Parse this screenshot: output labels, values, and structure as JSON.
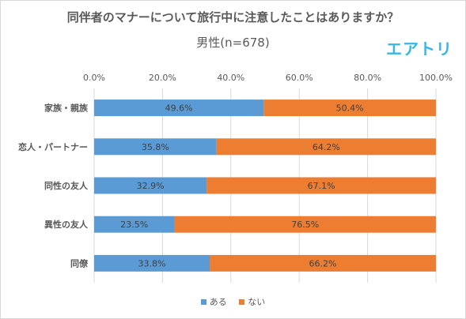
{
  "chart_data": {
    "type": "bar",
    "stacked": true,
    "orientation": "horizontal",
    "percent": true,
    "title": "同伴者のマナーについて旅行中に注意したことはありますか？",
    "subtitle": "男性(n=678)",
    "brand": "エアトリ",
    "categories": [
      "家族・親族",
      "恋人・パートナー",
      "同性の友人",
      "異性の友人",
      "同僚"
    ],
    "series": [
      {
        "name": "ある",
        "color": "#5b9bd5",
        "values": [
          49.6,
          35.8,
          32.9,
          23.5,
          33.8
        ]
      },
      {
        "name": "ない",
        "color": "#ed7d31",
        "values": [
          50.4,
          64.2,
          67.1,
          76.5,
          66.2
        ]
      }
    ],
    "xlim": [
      0,
      100
    ],
    "xticks": [
      0,
      20,
      40,
      60,
      80,
      100
    ],
    "xtick_labels": [
      "0.0%",
      "20.0%",
      "40.0%",
      "60.0%",
      "80.0%",
      "100.0%"
    ],
    "data_labels": [
      [
        "49.6%",
        "35.8%",
        "32.9%",
        "23.5%",
        "33.8%"
      ],
      [
        "50.4%",
        "64.2%",
        "67.1%",
        "76.5%",
        "66.2%"
      ]
    ],
    "grid": true,
    "legend_position": "bottom"
  }
}
